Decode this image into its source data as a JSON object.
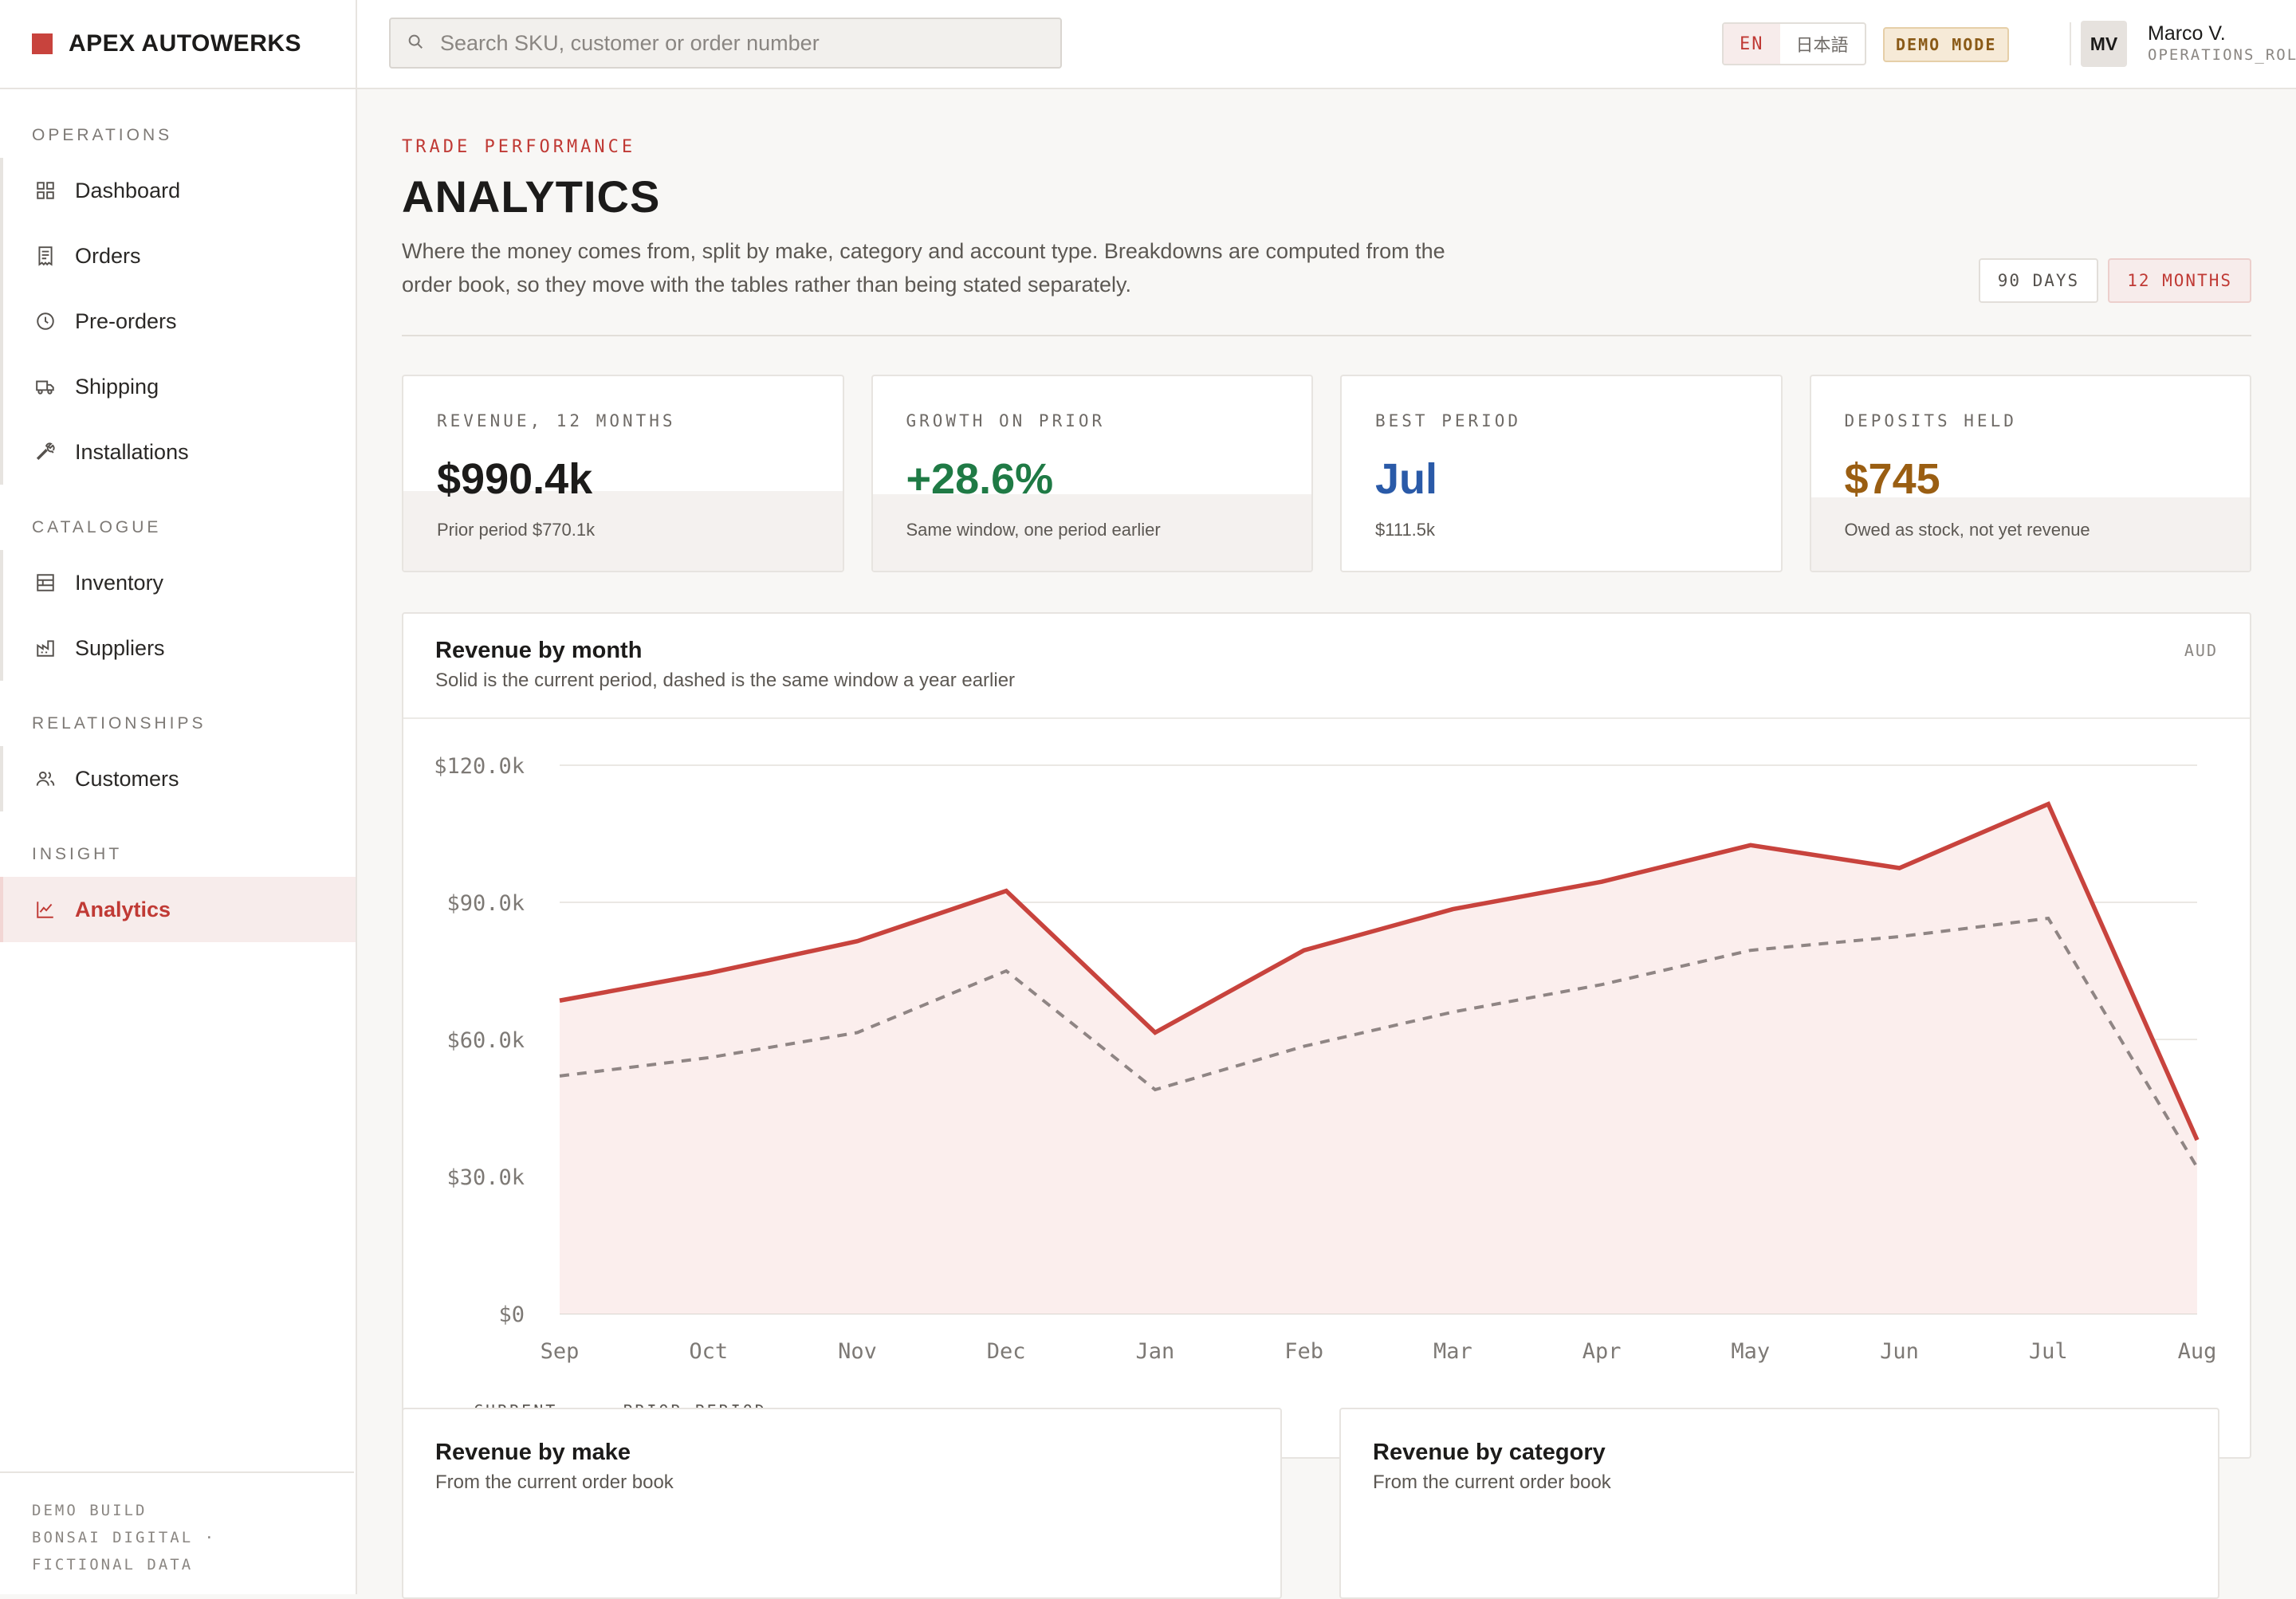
{
  "brand": {
    "name": "APEX AUTOWERKS",
    "color": "#c8433d"
  },
  "search": {
    "placeholder": "Search SKU, customer or order number"
  },
  "lang": {
    "active": "EN",
    "other": "日本語"
  },
  "demo_badge": "DEMO MODE",
  "user": {
    "initials": "MV",
    "name": "Marco V.",
    "role": "OPERATIONS_ROLE"
  },
  "sidebar": {
    "sections": [
      {
        "label": "OPERATIONS",
        "items": [
          {
            "label": "Dashboard",
            "icon": "grid-icon"
          },
          {
            "label": "Orders",
            "icon": "receipt-icon"
          },
          {
            "label": "Pre-orders",
            "icon": "clock-icon"
          },
          {
            "label": "Shipping",
            "icon": "truck-icon"
          },
          {
            "label": "Installations",
            "icon": "wrench-icon"
          }
        ]
      },
      {
        "label": "CATALOGUE",
        "items": [
          {
            "label": "Inventory",
            "icon": "boxes-icon"
          },
          {
            "label": "Suppliers",
            "icon": "factory-icon"
          }
        ]
      },
      {
        "label": "RELATIONSHIPS",
        "items": [
          {
            "label": "Customers",
            "icon": "users-icon"
          }
        ]
      },
      {
        "label": "INSIGHT",
        "items": [
          {
            "label": "Analytics",
            "icon": "chart-line-icon",
            "active": true
          }
        ]
      }
    ],
    "footer": {
      "line1": "DEMO BUILD",
      "line2": "BONSAI DIGITAL · FICTIONAL DATA"
    }
  },
  "page": {
    "eyebrow": "TRADE PERFORMANCE",
    "title": "ANALYTICS",
    "description": "Where the money comes from, split by make, category and account type. Breakdowns are computed from the order book, so they move with the tables rather than being stated separately.",
    "range_options": [
      "90 DAYS",
      "12 MONTHS"
    ],
    "range_selected": "12 MONTHS"
  },
  "kpis": [
    {
      "label": "REVENUE, 12 MONTHS",
      "value": "$990.4k",
      "sub": "Prior period $770.1k",
      "color": "#1c1b1a"
    },
    {
      "label": "GROWTH ON PRIOR",
      "value": "+28.6%",
      "sub": "Same window, one period earlier",
      "color": "#1f7a45"
    },
    {
      "label": "BEST PERIOD",
      "value": "Jul",
      "sub": "$111.5k",
      "color": "#2a5aa8"
    },
    {
      "label": "DEPOSITS HELD",
      "value": "$745",
      "sub": "Owed as stock, not yet revenue",
      "color": "#9a5e12"
    }
  ],
  "revenue_panel": {
    "title": "Revenue by month",
    "subtitle": "Solid is the current period, dashed is the same window a year earlier",
    "unit": "AUD",
    "legend": {
      "current": "CURRENT",
      "prior": "PRIOR PERIOD"
    }
  },
  "chart_data": {
    "type": "line",
    "categories": [
      "Sep",
      "Oct",
      "Nov",
      "Dec",
      "Jan",
      "Feb",
      "Mar",
      "Apr",
      "May",
      "Jun",
      "Jul",
      "Aug"
    ],
    "series": [
      {
        "name": "CURRENT",
        "color": "#c8433d",
        "style": "solid",
        "fill": "#fbeeed",
        "values": [
          68.5,
          74.5,
          81.5,
          92.5,
          61.5,
          79.5,
          88.5,
          94.5,
          102.5,
          97.5,
          111.5,
          38.0
        ]
      },
      {
        "name": "PRIOR PERIOD",
        "color": "#8f8584",
        "style": "dashed",
        "values": [
          52.0,
          56.0,
          61.5,
          75.0,
          49.0,
          58.5,
          66.0,
          72.0,
          79.5,
          82.5,
          86.5,
          32.0
        ]
      }
    ],
    "yticks": [
      "$0",
      "$30.0k",
      "$60.0k",
      "$90.0k",
      "$120.0k"
    ],
    "ylim": [
      0,
      120
    ],
    "grid": true,
    "legend_position": "bottom-left"
  },
  "bottom_cards": [
    {
      "title": "Revenue by make",
      "subtitle": "From the current order book"
    },
    {
      "title": "Revenue by category",
      "subtitle": "From the current order book"
    }
  ]
}
